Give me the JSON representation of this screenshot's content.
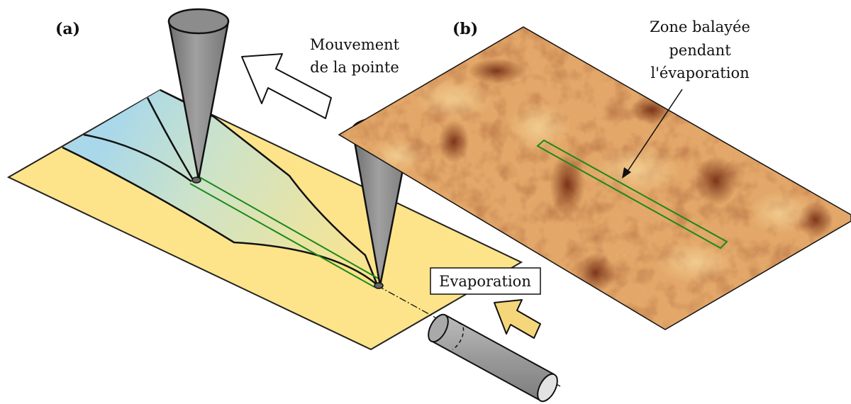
{
  "panels": {
    "a": {
      "label": "(a)"
    },
    "b": {
      "label": "(b)"
    }
  },
  "annotations": {
    "tip_movement": {
      "line1": "Mouvement",
      "line2": "de la pointe"
    },
    "evaporation": "Evaporation",
    "scan_zone": {
      "line1": "Zone balayée",
      "line2": "pendant",
      "line3": "l'évaporation"
    }
  },
  "colors": {
    "substrate": "#fde48a",
    "deposit_start": "#a9d8ea",
    "tip_gray": "#8c8c8c",
    "scan_line": "#1a8a1a",
    "arrow_yellow": "#f5d67a",
    "stm_light": "#e8b272",
    "stm_dark": "#7a2c10"
  }
}
